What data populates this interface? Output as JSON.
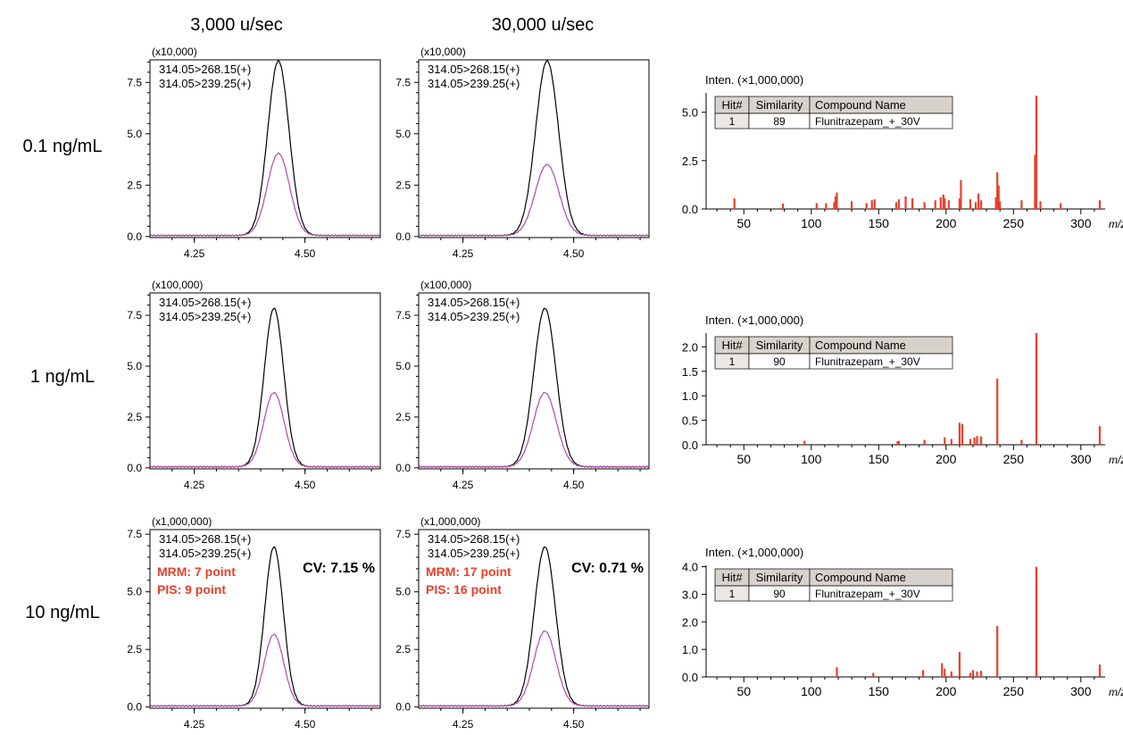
{
  "headers": {
    "columns": [
      "3,000 u/sec",
      "30,000 u/sec"
    ],
    "rows": [
      "0.1 ng/mL",
      "1 ng/mL",
      "10 ng/mL"
    ]
  },
  "colors": {
    "trace_268": "#000000",
    "trace_239": "#b04aa8",
    "spectrum_bar": "#e8402a",
    "annotation": "#e8402a",
    "table_header": "#d8d2cc",
    "table_hit_cell": "#ece7e2"
  },
  "chart_data": [
    {
      "id": "chrom-0-0",
      "type": "line",
      "row": 0,
      "col": 0,
      "scale_label": "(x10,000)",
      "legend": [
        "314.05>268.15(+)",
        "314.05>239.25(+)"
      ],
      "xlim": [
        4.15,
        4.67
      ],
      "ylim": [
        -0.05,
        8.6
      ],
      "xticks": [
        {
          "v": 4.25,
          "l": "4.25"
        },
        {
          "v": 4.5,
          "l": "4.50"
        }
      ],
      "yticks": [
        {
          "v": 0,
          "l": "0.0"
        },
        {
          "v": 2.5,
          "l": "2.5"
        },
        {
          "v": 5.0,
          "l": "5.0"
        },
        {
          "v": 7.5,
          "l": "7.5"
        }
      ],
      "series": [
        {
          "name": "314.05>268.15(+)",
          "apex": 4.44,
          "height": 8.5,
          "sigma": 0.024
        },
        {
          "name": "314.05>239.25(+)",
          "apex": 4.44,
          "height": 4.0,
          "sigma": 0.025
        }
      ],
      "annotations": null
    },
    {
      "id": "chrom-0-1",
      "type": "line",
      "row": 0,
      "col": 1,
      "scale_label": "(x10,000)",
      "legend": [
        "314.05>268.15(+)",
        "314.05>239.25(+)"
      ],
      "xlim": [
        4.15,
        4.67
      ],
      "ylim": [
        -0.05,
        8.6
      ],
      "xticks": [
        {
          "v": 4.25,
          "l": "4.25"
        },
        {
          "v": 4.5,
          "l": "4.50"
        }
      ],
      "yticks": [
        {
          "v": 0,
          "l": "0.0"
        },
        {
          "v": 2.5,
          "l": "2.5"
        },
        {
          "v": 5.0,
          "l": "5.0"
        },
        {
          "v": 7.5,
          "l": "7.5"
        }
      ],
      "series": [
        {
          "name": "314.05>268.15(+)",
          "apex": 4.44,
          "height": 8.5,
          "sigma": 0.026
        },
        {
          "name": "314.05>239.25(+)",
          "apex": 4.44,
          "height": 3.45,
          "sigma": 0.027
        }
      ],
      "annotations": null
    },
    {
      "id": "chrom-1-0",
      "type": "line",
      "row": 1,
      "col": 0,
      "scale_label": "(x100,000)",
      "legend": [
        "314.05>268.15(+)",
        "314.05>239.25(+)"
      ],
      "xlim": [
        4.15,
        4.67
      ],
      "ylim": [
        -0.05,
        8.6
      ],
      "xticks": [
        {
          "v": 4.25,
          "l": "4.25"
        },
        {
          "v": 4.5,
          "l": "4.50"
        }
      ],
      "yticks": [
        {
          "v": 0,
          "l": "0.0"
        },
        {
          "v": 2.5,
          "l": "2.5"
        },
        {
          "v": 5.0,
          "l": "5.0"
        },
        {
          "v": 7.5,
          "l": "7.5"
        }
      ],
      "series": [
        {
          "name": "314.05>268.15(+)",
          "apex": 4.43,
          "height": 7.8,
          "sigma": 0.022
        },
        {
          "name": "314.05>239.25(+)",
          "apex": 4.43,
          "height": 3.65,
          "sigma": 0.023
        }
      ],
      "annotations": null
    },
    {
      "id": "chrom-1-1",
      "type": "line",
      "row": 1,
      "col": 1,
      "scale_label": "(x100,000)",
      "legend": [
        "314.05>268.15(+)",
        "314.05>239.25(+)"
      ],
      "xlim": [
        4.15,
        4.67
      ],
      "ylim": [
        -0.05,
        8.6
      ],
      "xticks": [
        {
          "v": 4.25,
          "l": "4.25"
        },
        {
          "v": 4.5,
          "l": "4.50"
        }
      ],
      "yticks": [
        {
          "v": 0,
          "l": "0.0"
        },
        {
          "v": 2.5,
          "l": "2.5"
        },
        {
          "v": 5.0,
          "l": "5.0"
        },
        {
          "v": 7.5,
          "l": "7.5"
        }
      ],
      "series": [
        {
          "name": "314.05>268.15(+)",
          "apex": 4.435,
          "height": 7.8,
          "sigma": 0.025
        },
        {
          "name": "314.05>239.25(+)",
          "apex": 4.435,
          "height": 3.65,
          "sigma": 0.026
        }
      ],
      "annotations": null
    },
    {
      "id": "chrom-2-0",
      "type": "line",
      "row": 2,
      "col": 0,
      "scale_label": "(x1,000,000)",
      "legend": [
        "314.05>268.15(+)",
        "314.05>239.25(+)"
      ],
      "xlim": [
        4.15,
        4.67
      ],
      "ylim": [
        -0.05,
        7.7
      ],
      "xticks": [
        {
          "v": 4.25,
          "l": "4.25"
        },
        {
          "v": 4.5,
          "l": "4.50"
        }
      ],
      "yticks": [
        {
          "v": 0,
          "l": "0.0"
        },
        {
          "v": 2.5,
          "l": "2.5"
        },
        {
          "v": 5.0,
          "l": "5.0"
        },
        {
          "v": 7.5,
          "l": "7.5"
        }
      ],
      "series": [
        {
          "name": "314.05>268.15(+)",
          "apex": 4.43,
          "height": 6.9,
          "sigma": 0.021
        },
        {
          "name": "314.05>239.25(+)",
          "apex": 4.43,
          "height": 3.1,
          "sigma": 0.022
        }
      ],
      "annotations": {
        "mrm": "MRM: 7 point",
        "pis": "PIS: 9 point",
        "cv": "CV: 7.15 %"
      }
    },
    {
      "id": "chrom-2-1",
      "type": "line",
      "row": 2,
      "col": 1,
      "scale_label": "(x1,000,000)",
      "legend": [
        "314.05>268.15(+)",
        "314.05>239.25(+)"
      ],
      "xlim": [
        4.15,
        4.67
      ],
      "ylim": [
        -0.05,
        7.7
      ],
      "xticks": [
        {
          "v": 4.25,
          "l": "4.25"
        },
        {
          "v": 4.5,
          "l": "4.50"
        }
      ],
      "yticks": [
        {
          "v": 0,
          "l": "0.0"
        },
        {
          "v": 2.5,
          "l": "2.5"
        },
        {
          "v": 5.0,
          "l": "5.0"
        },
        {
          "v": 7.5,
          "l": "7.5"
        }
      ],
      "series": [
        {
          "name": "314.05>268.15(+)",
          "apex": 4.435,
          "height": 6.9,
          "sigma": 0.024
        },
        {
          "name": "314.05>239.25(+)",
          "apex": 4.435,
          "height": 3.25,
          "sigma": 0.025
        }
      ],
      "annotations": {
        "mrm": "MRM: 17 point",
        "pis": "PIS: 16 point",
        "cv": "CV: 0.71 %"
      }
    },
    {
      "id": "spec-0",
      "type": "bar",
      "row": 0,
      "ylabel": "Inten. (×1,000,000)",
      "xlabel": "m/z",
      "xlim": [
        22,
        318
      ],
      "ylim": [
        0,
        6.0
      ],
      "xticks": [
        {
          "v": 50,
          "l": "50"
        },
        {
          "v": 100,
          "l": "100"
        },
        {
          "v": 150,
          "l": "150"
        },
        {
          "v": 200,
          "l": "200"
        },
        {
          "v": 250,
          "l": "250"
        },
        {
          "v": 300,
          "l": "300"
        }
      ],
      "yticks": [
        {
          "v": 0,
          "l": "0.0"
        },
        {
          "v": 2.5,
          "l": "2.5"
        },
        {
          "v": 5.0,
          "l": "5.0"
        }
      ],
      "table": {
        "headers": [
          "Hit#",
          "Similarity",
          "Compound Name"
        ],
        "rows": [
          [
            "1",
            "89",
            "Flunitrazepam_+_30V"
          ]
        ]
      },
      "peaks": [
        {
          "x": 43,
          "y": 0.55
        },
        {
          "x": 79,
          "y": 0.28
        },
        {
          "x": 104,
          "y": 0.3
        },
        {
          "x": 111,
          "y": 0.3
        },
        {
          "x": 117,
          "y": 0.35
        },
        {
          "x": 118,
          "y": 0.65
        },
        {
          "x": 119,
          "y": 0.85
        },
        {
          "x": 130,
          "y": 0.4
        },
        {
          "x": 141,
          "y": 0.3
        },
        {
          "x": 145,
          "y": 0.45
        },
        {
          "x": 147,
          "y": 0.5
        },
        {
          "x": 163,
          "y": 0.35
        },
        {
          "x": 165,
          "y": 0.5
        },
        {
          "x": 170,
          "y": 0.65
        },
        {
          "x": 175,
          "y": 0.55
        },
        {
          "x": 184,
          "y": 0.35
        },
        {
          "x": 192,
          "y": 0.45
        },
        {
          "x": 196,
          "y": 0.6
        },
        {
          "x": 198,
          "y": 0.75
        },
        {
          "x": 199,
          "y": 0.55
        },
        {
          "x": 202,
          "y": 0.45
        },
        {
          "x": 210,
          "y": 0.55
        },
        {
          "x": 211,
          "y": 1.5
        },
        {
          "x": 218,
          "y": 0.5
        },
        {
          "x": 222,
          "y": 0.35
        },
        {
          "x": 224,
          "y": 0.8
        },
        {
          "x": 226,
          "y": 0.45
        },
        {
          "x": 237,
          "y": 0.6
        },
        {
          "x": 238,
          "y": 1.9
        },
        {
          "x": 239,
          "y": 1.2
        },
        {
          "x": 240,
          "y": 0.4
        },
        {
          "x": 256,
          "y": 0.45
        },
        {
          "x": 266,
          "y": 2.8
        },
        {
          "x": 267,
          "y": 5.85
        },
        {
          "x": 270,
          "y": 0.4
        },
        {
          "x": 285,
          "y": 0.3
        },
        {
          "x": 314,
          "y": 0.45
        }
      ]
    },
    {
      "id": "spec-1",
      "type": "bar",
      "row": 1,
      "ylabel": "Inten. (×1,000,000)",
      "xlabel": "m/z",
      "xlim": [
        22,
        318
      ],
      "ylim": [
        0,
        2.28
      ],
      "xticks": [
        {
          "v": 50,
          "l": "50"
        },
        {
          "v": 100,
          "l": "100"
        },
        {
          "v": 150,
          "l": "150"
        },
        {
          "v": 200,
          "l": "200"
        },
        {
          "v": 250,
          "l": "250"
        },
        {
          "v": 300,
          "l": "300"
        }
      ],
      "yticks": [
        {
          "v": 0,
          "l": "0.0"
        },
        {
          "v": 0.5,
          "l": "0.5"
        },
        {
          "v": 1.0,
          "l": "1.0"
        },
        {
          "v": 1.5,
          "l": "1.5"
        },
        {
          "v": 2.0,
          "l": "2.0"
        }
      ],
      "table": {
        "headers": [
          "Hit#",
          "Similarity",
          "Compound Name"
        ],
        "rows": [
          [
            "1",
            "90",
            "Flunitrazepam_+_30V"
          ]
        ]
      },
      "peaks": [
        {
          "x": 95,
          "y": 0.08
        },
        {
          "x": 164,
          "y": 0.07
        },
        {
          "x": 165,
          "y": 0.08
        },
        {
          "x": 184,
          "y": 0.1
        },
        {
          "x": 199,
          "y": 0.15
        },
        {
          "x": 204,
          "y": 0.12
        },
        {
          "x": 210,
          "y": 0.45
        },
        {
          "x": 212,
          "y": 0.42
        },
        {
          "x": 218,
          "y": 0.12
        },
        {
          "x": 221,
          "y": 0.15
        },
        {
          "x": 223,
          "y": 0.18
        },
        {
          "x": 226,
          "y": 0.17
        },
        {
          "x": 238,
          "y": 1.35
        },
        {
          "x": 256,
          "y": 0.1
        },
        {
          "x": 267,
          "y": 2.28
        },
        {
          "x": 314,
          "y": 0.38
        }
      ]
    },
    {
      "id": "spec-2",
      "type": "bar",
      "row": 2,
      "ylabel": "Inten. (×1,000,000)",
      "xlabel": "m/z",
      "xlim": [
        22,
        318
      ],
      "ylim": [
        0,
        4.05
      ],
      "xticks": [
        {
          "v": 50,
          "l": "50"
        },
        {
          "v": 100,
          "l": "100"
        },
        {
          "v": 150,
          "l": "150"
        },
        {
          "v": 200,
          "l": "200"
        },
        {
          "v": 250,
          "l": "250"
        },
        {
          "v": 300,
          "l": "300"
        }
      ],
      "yticks": [
        {
          "v": 0,
          "l": "0.0"
        },
        {
          "v": 1.0,
          "l": "1.0"
        },
        {
          "v": 2.0,
          "l": "2.0"
        },
        {
          "v": 3.0,
          "l": "3.0"
        },
        {
          "v": 4.0,
          "l": "4.0"
        }
      ],
      "table": {
        "headers": [
          "Hit#",
          "Similarity",
          "Compound Name"
        ],
        "rows": [
          [
            "1",
            "90",
            "Flunitrazepam_+_30V"
          ]
        ]
      },
      "peaks": [
        {
          "x": 119,
          "y": 0.35
        },
        {
          "x": 146,
          "y": 0.15
        },
        {
          "x": 183,
          "y": 0.25
        },
        {
          "x": 197,
          "y": 0.5
        },
        {
          "x": 199,
          "y": 0.3
        },
        {
          "x": 204,
          "y": 0.2
        },
        {
          "x": 210,
          "y": 0.9
        },
        {
          "x": 218,
          "y": 0.15
        },
        {
          "x": 220,
          "y": 0.25
        },
        {
          "x": 223,
          "y": 0.2
        },
        {
          "x": 226,
          "y": 0.22
        },
        {
          "x": 238,
          "y": 1.85
        },
        {
          "x": 267,
          "y": 4.0
        },
        {
          "x": 314,
          "y": 0.45
        }
      ]
    }
  ]
}
